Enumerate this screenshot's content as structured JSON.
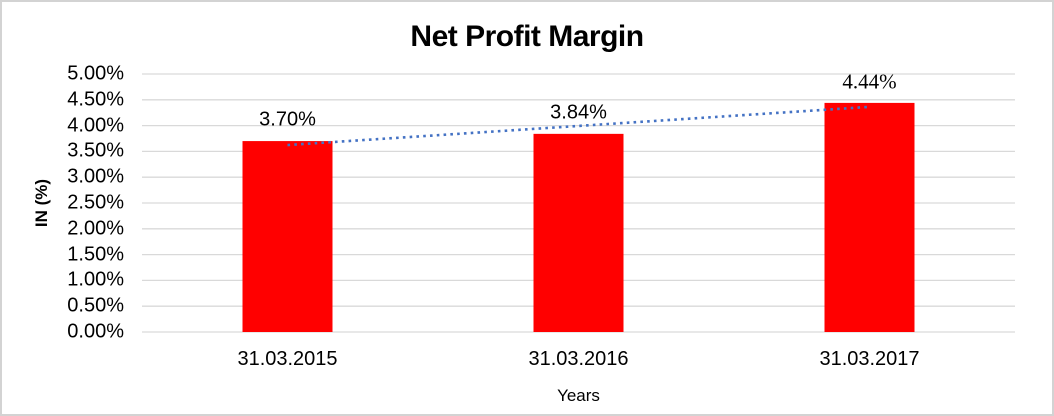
{
  "chart_data": {
    "type": "bar",
    "title": "Net Profit Margin",
    "categories": [
      "31.03.2015",
      "31.03.2016",
      "31.03.2017"
    ],
    "values": [
      3.7,
      3.84,
      4.44
    ],
    "data_labels": [
      "3.70%",
      "3.84%",
      "4.44%"
    ],
    "xlabel": "Years",
    "ylabel": "IN (%)",
    "ylim": [
      0,
      5
    ],
    "ytick_step": 0.5,
    "ytick_labels": [
      "0.00%",
      "0.50%",
      "1.00%",
      "1.50%",
      "2.00%",
      "2.50%",
      "3.00%",
      "3.50%",
      "4.00%",
      "4.50%",
      "5.00%"
    ],
    "grid": true,
    "legend": "none",
    "trendline": {
      "type": "linear",
      "style": "dotted"
    },
    "colors": {
      "bar": "#FF0000",
      "trendline": "#4472C4",
      "gridline": "#D9D9D9",
      "frame_border": "#D3D3D3",
      "text": "#000000"
    }
  }
}
